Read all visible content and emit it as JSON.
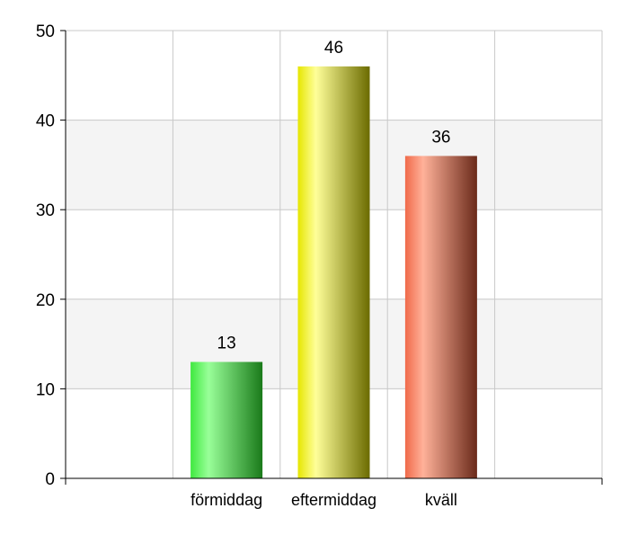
{
  "chart_data": {
    "type": "bar",
    "categories": [
      "förmiddag",
      "eftermiddag",
      "kväll"
    ],
    "values": [
      13,
      46,
      36
    ],
    "data_labels": [
      "13",
      "46",
      "36"
    ],
    "yticks": [
      "0",
      "10",
      "20",
      "30",
      "40",
      "50"
    ],
    "ylim": [
      0,
      50
    ],
    "xlabel": "",
    "ylabel": "",
    "title": "",
    "grid": true,
    "legend": "none",
    "colors": {
      "bar_light": [
        "#99ff99",
        "#ffff99",
        "#ffb199"
      ],
      "bar_mid": [
        "#3fe83f",
        "#e6e600",
        "#f06a4a"
      ],
      "bar_dark": [
        "#1a7a1a",
        "#6b6b00",
        "#6a2a1a"
      ],
      "band": "#f4f4f4",
      "gridline": "#c8c8c8",
      "axis": "#000000"
    }
  }
}
